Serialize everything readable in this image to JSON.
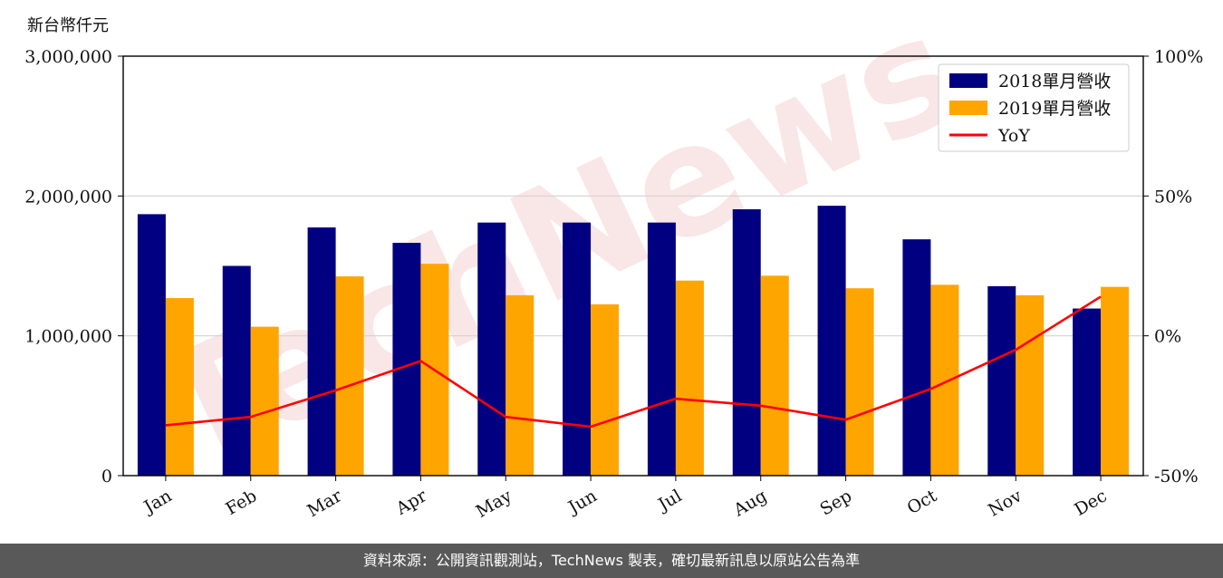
{
  "unit_label": "新台幣仟元",
  "footer_text": "資料來源：公開資訊觀測站，TechNews 製表，確切最新訊息以原站公告為準",
  "watermark_text": "TechNews",
  "chart_data": {
    "type": "bar",
    "categories": [
      "Jan",
      "Feb",
      "Mar",
      "Apr",
      "May",
      "Jun",
      "Jul",
      "Aug",
      "Sep",
      "Oct",
      "Nov",
      "Dec"
    ],
    "series": [
      {
        "name": "2018單月營收",
        "type": "bar",
        "axis": "left",
        "color": "#000080",
        "values": [
          1870000,
          1500000,
          1775000,
          1665000,
          1810000,
          1810000,
          1810000,
          1905000,
          1930000,
          1690000,
          1355000,
          1195000
        ]
      },
      {
        "name": "2019單月營收",
        "type": "bar",
        "axis": "left",
        "color": "#FFA500",
        "values": [
          1270000,
          1065000,
          1425000,
          1515000,
          1290000,
          1225000,
          1395000,
          1430000,
          1340000,
          1365000,
          1290000,
          1350000
        ]
      },
      {
        "name": "YoY",
        "type": "line",
        "axis": "right",
        "color": "#FF0000",
        "values": [
          -32,
          -29,
          -19.5,
          -9,
          -29,
          -32.5,
          -22.5,
          -25,
          -30,
          -19,
          -5,
          14
        ]
      }
    ],
    "ylim": [
      0,
      3000000
    ],
    "yticks": [
      "0",
      "1,000,000",
      "2,000,000",
      "3,000,000"
    ],
    "y2lim": [
      -50,
      100
    ],
    "y2ticks": [
      "-50%",
      "0%",
      "50%",
      "100%"
    ],
    "grid": "horizontal",
    "legend": "top-right"
  }
}
